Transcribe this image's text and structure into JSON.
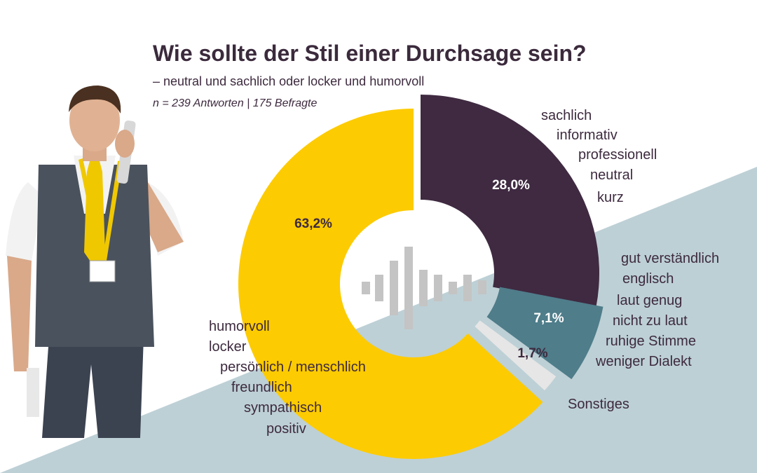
{
  "title": "Wie sollte der Stil einer Durchsage sein?",
  "subtitle": "– neutral und sachlich oder locker und humorvoll",
  "note": "n = 239 Antworten | 175 Befragte",
  "colors": {
    "background_band": "#bdd0d6",
    "sachlich": "#3f2a41",
    "humorvoll": "#fdcb01",
    "verstaendlich": "#4f7d8a",
    "sonstiges": "#e6e6e6",
    "icon": "#c4c4c4"
  },
  "center_icon": "audio-waveform-icon",
  "person_figure": "railway-employee-on-phone",
  "chart_data": {
    "type": "pie",
    "donut": true,
    "slices": [
      {
        "id": "sachlich",
        "value": 28.0,
        "label": "28,0%",
        "descriptors": [
          "sachlich",
          "informativ",
          "professionell",
          "neutral",
          "kurz"
        ]
      },
      {
        "id": "verstaendlich",
        "value": 7.1,
        "label": "7,1%",
        "descriptors": [
          "gut verständlich",
          "englisch",
          "laut genug",
          "nicht zu laut",
          "ruhige Stimme",
          "weniger Dialekt"
        ]
      },
      {
        "id": "sonstiges",
        "value": 1.7,
        "label": "1,7%",
        "descriptors": [
          "Sonstiges"
        ]
      },
      {
        "id": "humorvoll",
        "value": 63.2,
        "label": "63,2%",
        "descriptors": [
          "humorvoll",
          "locker",
          "persönlich / menschlich",
          "freundlich",
          "sympathisch",
          "positiv"
        ]
      }
    ]
  }
}
